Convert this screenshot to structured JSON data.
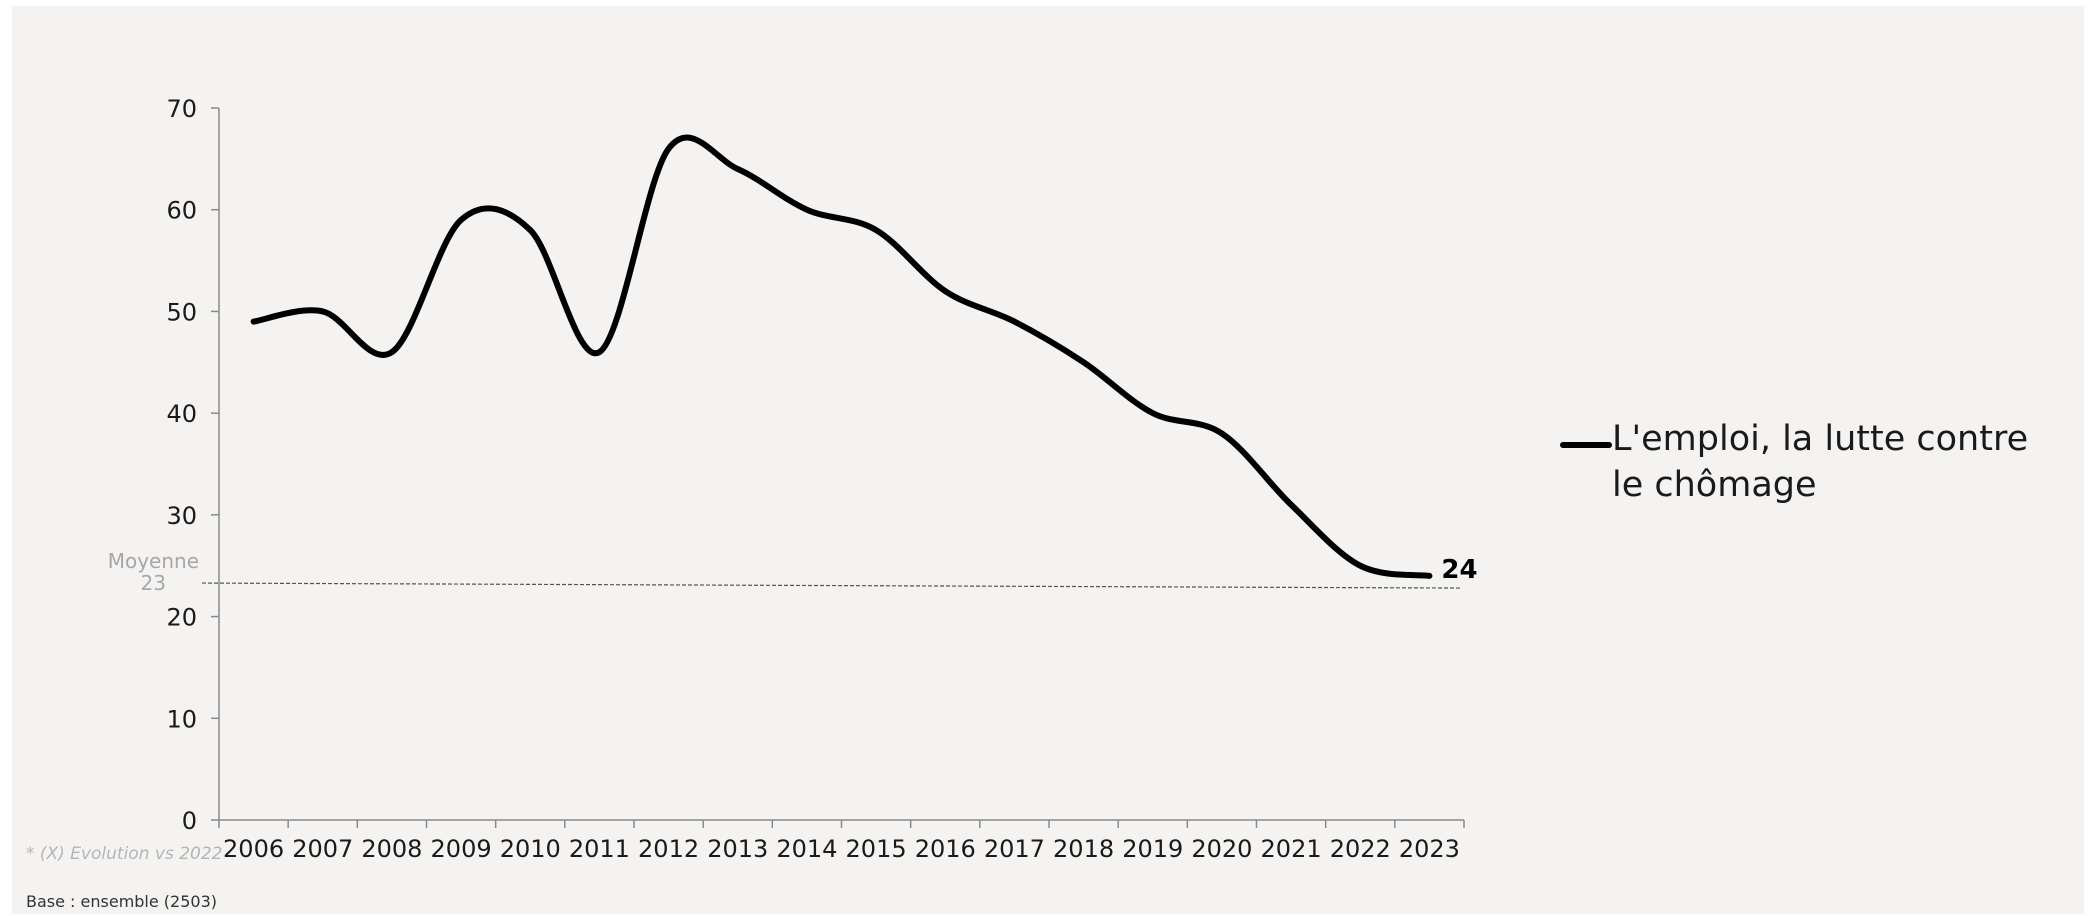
{
  "chart_data": {
    "type": "line",
    "title": "",
    "xlabel": "",
    "ylabel": "",
    "categories": [
      "2006",
      "2007",
      "2008",
      "2009",
      "2010",
      "2011",
      "2012",
      "2013",
      "2014",
      "2015",
      "2016",
      "2017",
      "2018",
      "2019",
      "2020",
      "2021",
      "2022",
      "2023"
    ],
    "series": [
      {
        "name": "L'emploi, la lutte contre le chômage",
        "values": [
          49,
          50,
          46,
          59,
          58,
          46,
          66,
          64,
          60,
          58,
          52,
          49,
          45,
          40,
          38,
          31,
          25,
          24
        ]
      }
    ],
    "ylim": [
      0,
      70
    ],
    "yticks": [
      "0",
      "10",
      "20",
      "30",
      "40",
      "50",
      "60",
      "70"
    ],
    "average": {
      "label": "Moyenne",
      "value": 23
    },
    "end_label": "24",
    "legend_position": "right",
    "grid": false,
    "colors": {
      "line": "#000000",
      "average_line": "#555555",
      "background": "#f4f3f1"
    }
  },
  "legend": {
    "line1": "L'emploi, la lutte contre",
    "line2": "le chômage"
  },
  "footnote": "* (X) Evolution vs 2022",
  "base_note": "Base : ensemble (2503)"
}
